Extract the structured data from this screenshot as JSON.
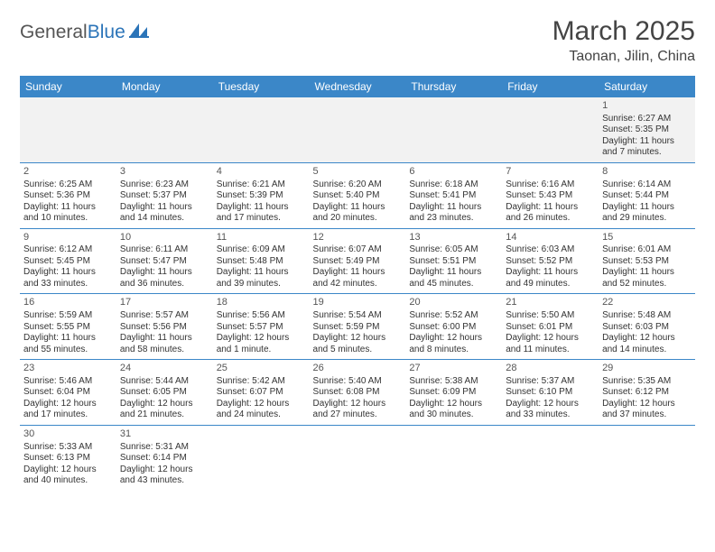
{
  "logo": {
    "general": "General",
    "blue": "Blue"
  },
  "title": "March 2025",
  "location": "Taonan, Jilin, China",
  "headers": [
    "Sunday",
    "Monday",
    "Tuesday",
    "Wednesday",
    "Thursday",
    "Friday",
    "Saturday"
  ],
  "colors": {
    "header_bg": "#3b87c8",
    "header_fg": "#ffffff",
    "row1_bg": "#f2f2f2",
    "border": "#3b87c8",
    "logo_blue": "#2b74b8",
    "text": "#333333"
  },
  "weeks": [
    [
      null,
      null,
      null,
      null,
      null,
      null,
      {
        "n": "1",
        "sr": "Sunrise: 6:27 AM",
        "ss": "Sunset: 5:35 PM",
        "d1": "Daylight: 11 hours",
        "d2": "and 7 minutes."
      }
    ],
    [
      {
        "n": "2",
        "sr": "Sunrise: 6:25 AM",
        "ss": "Sunset: 5:36 PM",
        "d1": "Daylight: 11 hours",
        "d2": "and 10 minutes."
      },
      {
        "n": "3",
        "sr": "Sunrise: 6:23 AM",
        "ss": "Sunset: 5:37 PM",
        "d1": "Daylight: 11 hours",
        "d2": "and 14 minutes."
      },
      {
        "n": "4",
        "sr": "Sunrise: 6:21 AM",
        "ss": "Sunset: 5:39 PM",
        "d1": "Daylight: 11 hours",
        "d2": "and 17 minutes."
      },
      {
        "n": "5",
        "sr": "Sunrise: 6:20 AM",
        "ss": "Sunset: 5:40 PM",
        "d1": "Daylight: 11 hours",
        "d2": "and 20 minutes."
      },
      {
        "n": "6",
        "sr": "Sunrise: 6:18 AM",
        "ss": "Sunset: 5:41 PM",
        "d1": "Daylight: 11 hours",
        "d2": "and 23 minutes."
      },
      {
        "n": "7",
        "sr": "Sunrise: 6:16 AM",
        "ss": "Sunset: 5:43 PM",
        "d1": "Daylight: 11 hours",
        "d2": "and 26 minutes."
      },
      {
        "n": "8",
        "sr": "Sunrise: 6:14 AM",
        "ss": "Sunset: 5:44 PM",
        "d1": "Daylight: 11 hours",
        "d2": "and 29 minutes."
      }
    ],
    [
      {
        "n": "9",
        "sr": "Sunrise: 6:12 AM",
        "ss": "Sunset: 5:45 PM",
        "d1": "Daylight: 11 hours",
        "d2": "and 33 minutes."
      },
      {
        "n": "10",
        "sr": "Sunrise: 6:11 AM",
        "ss": "Sunset: 5:47 PM",
        "d1": "Daylight: 11 hours",
        "d2": "and 36 minutes."
      },
      {
        "n": "11",
        "sr": "Sunrise: 6:09 AM",
        "ss": "Sunset: 5:48 PM",
        "d1": "Daylight: 11 hours",
        "d2": "and 39 minutes."
      },
      {
        "n": "12",
        "sr": "Sunrise: 6:07 AM",
        "ss": "Sunset: 5:49 PM",
        "d1": "Daylight: 11 hours",
        "d2": "and 42 minutes."
      },
      {
        "n": "13",
        "sr": "Sunrise: 6:05 AM",
        "ss": "Sunset: 5:51 PM",
        "d1": "Daylight: 11 hours",
        "d2": "and 45 minutes."
      },
      {
        "n": "14",
        "sr": "Sunrise: 6:03 AM",
        "ss": "Sunset: 5:52 PM",
        "d1": "Daylight: 11 hours",
        "d2": "and 49 minutes."
      },
      {
        "n": "15",
        "sr": "Sunrise: 6:01 AM",
        "ss": "Sunset: 5:53 PM",
        "d1": "Daylight: 11 hours",
        "d2": "and 52 minutes."
      }
    ],
    [
      {
        "n": "16",
        "sr": "Sunrise: 5:59 AM",
        "ss": "Sunset: 5:55 PM",
        "d1": "Daylight: 11 hours",
        "d2": "and 55 minutes."
      },
      {
        "n": "17",
        "sr": "Sunrise: 5:57 AM",
        "ss": "Sunset: 5:56 PM",
        "d1": "Daylight: 11 hours",
        "d2": "and 58 minutes."
      },
      {
        "n": "18",
        "sr": "Sunrise: 5:56 AM",
        "ss": "Sunset: 5:57 PM",
        "d1": "Daylight: 12 hours",
        "d2": "and 1 minute."
      },
      {
        "n": "19",
        "sr": "Sunrise: 5:54 AM",
        "ss": "Sunset: 5:59 PM",
        "d1": "Daylight: 12 hours",
        "d2": "and 5 minutes."
      },
      {
        "n": "20",
        "sr": "Sunrise: 5:52 AM",
        "ss": "Sunset: 6:00 PM",
        "d1": "Daylight: 12 hours",
        "d2": "and 8 minutes."
      },
      {
        "n": "21",
        "sr": "Sunrise: 5:50 AM",
        "ss": "Sunset: 6:01 PM",
        "d1": "Daylight: 12 hours",
        "d2": "and 11 minutes."
      },
      {
        "n": "22",
        "sr": "Sunrise: 5:48 AM",
        "ss": "Sunset: 6:03 PM",
        "d1": "Daylight: 12 hours",
        "d2": "and 14 minutes."
      }
    ],
    [
      {
        "n": "23",
        "sr": "Sunrise: 5:46 AM",
        "ss": "Sunset: 6:04 PM",
        "d1": "Daylight: 12 hours",
        "d2": "and 17 minutes."
      },
      {
        "n": "24",
        "sr": "Sunrise: 5:44 AM",
        "ss": "Sunset: 6:05 PM",
        "d1": "Daylight: 12 hours",
        "d2": "and 21 minutes."
      },
      {
        "n": "25",
        "sr": "Sunrise: 5:42 AM",
        "ss": "Sunset: 6:07 PM",
        "d1": "Daylight: 12 hours",
        "d2": "and 24 minutes."
      },
      {
        "n": "26",
        "sr": "Sunrise: 5:40 AM",
        "ss": "Sunset: 6:08 PM",
        "d1": "Daylight: 12 hours",
        "d2": "and 27 minutes."
      },
      {
        "n": "27",
        "sr": "Sunrise: 5:38 AM",
        "ss": "Sunset: 6:09 PM",
        "d1": "Daylight: 12 hours",
        "d2": "and 30 minutes."
      },
      {
        "n": "28",
        "sr": "Sunrise: 5:37 AM",
        "ss": "Sunset: 6:10 PM",
        "d1": "Daylight: 12 hours",
        "d2": "and 33 minutes."
      },
      {
        "n": "29",
        "sr": "Sunrise: 5:35 AM",
        "ss": "Sunset: 6:12 PM",
        "d1": "Daylight: 12 hours",
        "d2": "and 37 minutes."
      }
    ],
    [
      {
        "n": "30",
        "sr": "Sunrise: 5:33 AM",
        "ss": "Sunset: 6:13 PM",
        "d1": "Daylight: 12 hours",
        "d2": "and 40 minutes."
      },
      {
        "n": "31",
        "sr": "Sunrise: 5:31 AM",
        "ss": "Sunset: 6:14 PM",
        "d1": "Daylight: 12 hours",
        "d2": "and 43 minutes."
      },
      null,
      null,
      null,
      null,
      null
    ]
  ]
}
